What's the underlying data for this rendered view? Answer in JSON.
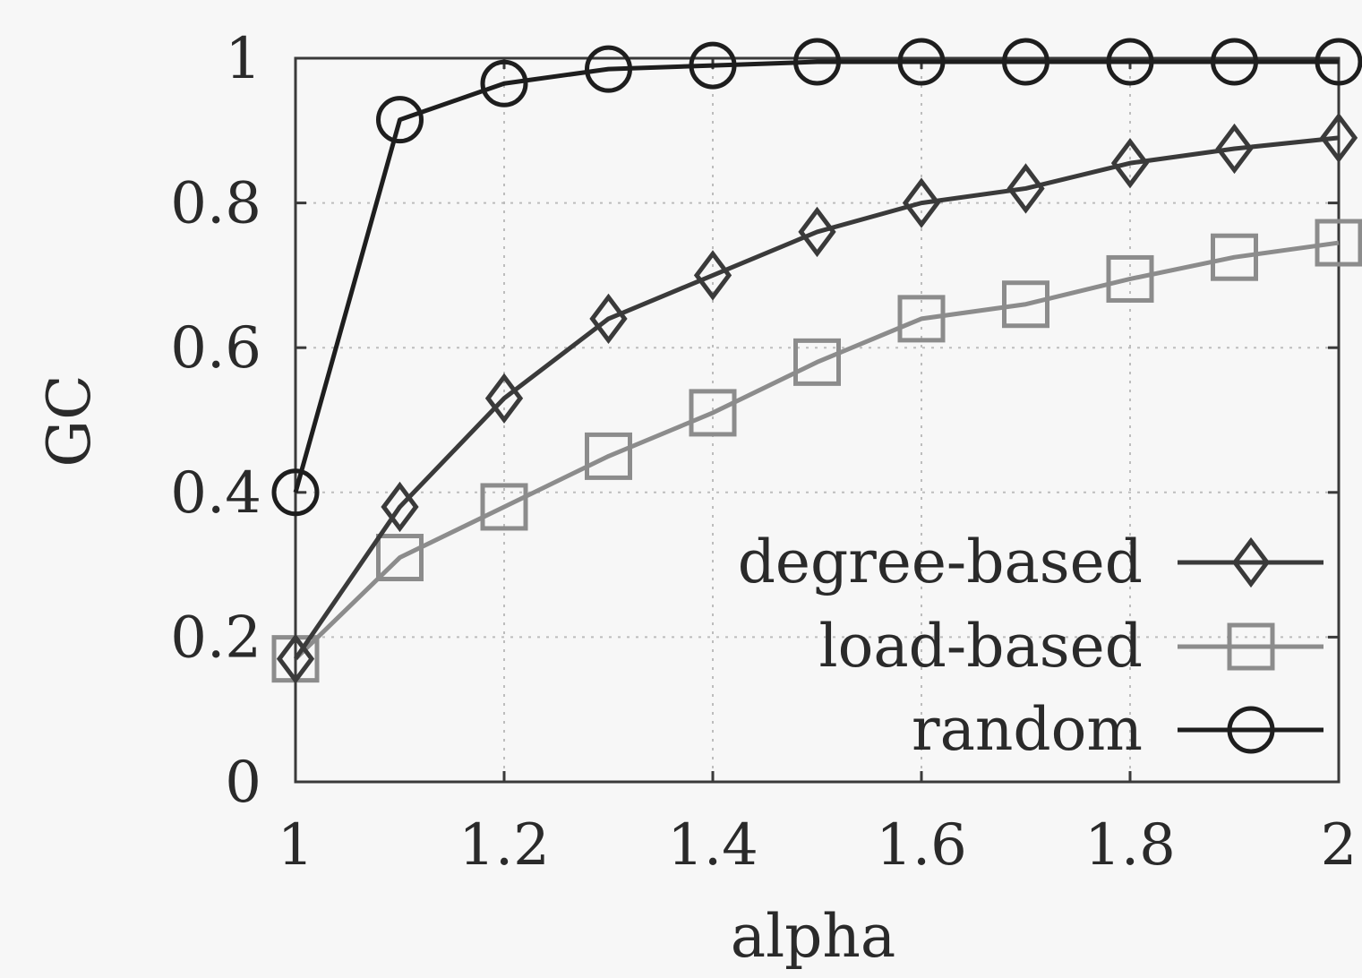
{
  "chart_data": {
    "type": "line",
    "title": "",
    "xlabel": "alpha",
    "ylabel": "GC",
    "xlim": [
      1,
      2
    ],
    "ylim": [
      0,
      1
    ],
    "xticks": [
      1,
      1.2,
      1.4,
      1.6,
      1.8,
      2
    ],
    "xtick_labels": [
      "1",
      "1.2",
      "1.4",
      "1.6",
      "1.8",
      "2"
    ],
    "yticks": [
      0,
      0.2,
      0.4,
      0.6,
      0.8,
      1
    ],
    "ytick_labels": [
      "0",
      "0.2",
      "0.4",
      "0.6",
      "0.8",
      "1"
    ],
    "grid": true,
    "legend_position": "bottom-right",
    "x": [
      1.0,
      1.1,
      1.2,
      1.3,
      1.4,
      1.5,
      1.6,
      1.7,
      1.8,
      1.9,
      2.0
    ],
    "series": [
      {
        "name": "degree-based",
        "marker": "diamond",
        "color": "#3a3a3a",
        "values": [
          0.17,
          0.38,
          0.53,
          0.64,
          0.7,
          0.76,
          0.8,
          0.82,
          0.855,
          0.875,
          0.89
        ]
      },
      {
        "name": "load-based",
        "marker": "square",
        "color": "#8c8c8c",
        "values": [
          0.17,
          0.31,
          0.38,
          0.45,
          0.51,
          0.58,
          0.64,
          0.66,
          0.695,
          0.725,
          0.745
        ]
      },
      {
        "name": "random",
        "marker": "circle",
        "color": "#1e1e1e",
        "values": [
          0.4,
          0.915,
          0.965,
          0.985,
          0.99,
          0.995,
          0.995,
          0.995,
          0.995,
          0.995,
          0.995
        ]
      }
    ]
  }
}
